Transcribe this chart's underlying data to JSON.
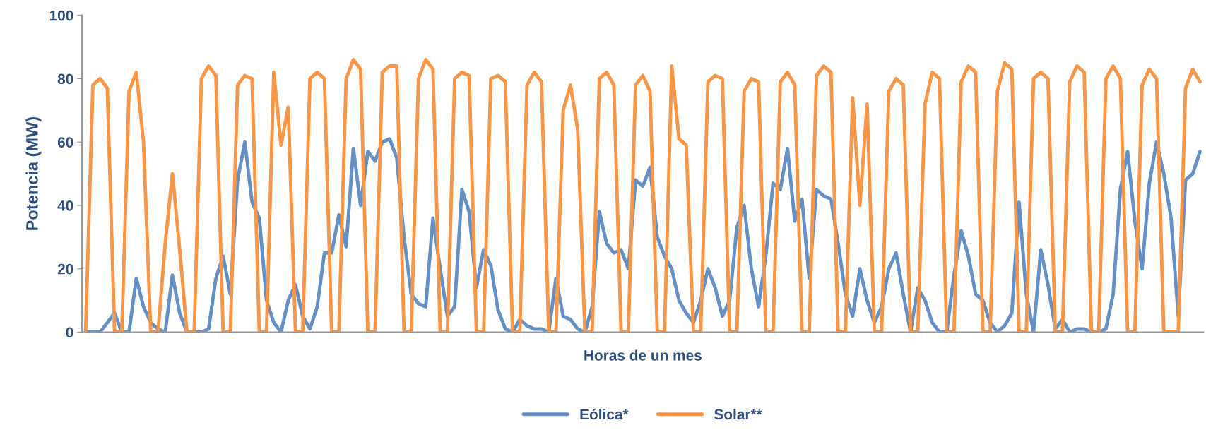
{
  "chart_data": {
    "type": "line",
    "xlabel": "Horas de un mes",
    "ylabel": "Potencia (MW)",
    "categories": [
      null,
      null,
      null,
      null,
      null,
      null,
      null,
      null,
      null,
      null,
      null,
      null,
      null,
      null,
      null,
      null,
      null,
      null,
      null,
      null,
      null,
      null,
      null,
      null,
      null,
      null,
      null,
      null,
      null,
      null,
      null,
      null,
      null,
      null,
      null,
      null,
      null,
      null,
      null,
      null,
      null,
      null,
      null,
      null,
      null,
      null,
      null,
      null,
      null,
      null,
      null,
      null,
      null,
      null,
      null,
      null,
      null,
      null,
      null,
      null,
      null,
      null,
      null,
      null,
      null,
      null,
      null,
      null,
      null,
      null,
      null,
      null,
      null,
      null,
      null,
      null,
      null,
      null,
      null,
      null,
      null,
      null,
      null,
      null,
      null,
      null,
      null,
      null,
      null,
      null,
      null,
      null,
      null,
      null,
      null,
      null,
      null,
      null,
      null,
      null,
      null,
      null,
      null,
      null,
      null,
      null,
      null,
      null,
      null,
      null,
      null,
      null,
      null,
      null,
      null,
      null,
      null,
      null,
      null,
      null,
      null,
      null,
      null,
      null,
      null,
      null,
      null,
      null,
      null,
      null,
      null,
      null,
      null,
      null,
      null,
      null,
      null,
      null,
      null,
      null,
      null,
      null,
      null,
      null,
      null,
      null,
      null,
      null,
      null,
      null,
      null,
      null,
      null,
      null,
      null
    ],
    "series": [
      {
        "name": "Eólica*",
        "color": "#6590c6",
        "values": [
          0,
          0,
          0,
          3,
          6,
          0,
          0,
          17,
          8,
          3,
          1,
          0,
          18,
          6,
          0,
          0,
          0,
          1,
          17,
          24,
          12,
          48,
          60,
          41,
          36,
          10,
          3,
          0,
          10,
          15,
          5,
          1,
          8,
          25,
          25,
          37,
          27,
          58,
          40,
          57,
          54,
          60,
          61,
          55,
          30,
          12,
          9,
          8,
          36,
          20,
          5,
          8,
          45,
          38,
          14,
          26,
          21,
          7,
          1,
          0,
          4,
          2,
          1,
          1,
          0,
          17,
          5,
          4,
          1,
          0,
          8,
          38,
          28,
          25,
          26,
          20,
          48,
          46,
          52,
          30,
          24,
          20,
          10,
          6,
          3,
          10,
          20,
          14,
          5,
          10,
          33,
          40,
          20,
          8,
          24,
          47,
          45,
          58,
          35,
          42,
          17,
          45,
          43,
          42,
          28,
          12,
          5,
          20,
          10,
          3,
          8,
          20,
          25,
          12,
          0,
          14,
          10,
          3,
          0,
          0,
          18,
          32,
          24,
          12,
          10,
          3,
          0,
          2,
          6,
          41,
          12,
          0,
          26,
          15,
          1,
          4,
          0,
          1,
          1,
          0,
          0,
          1,
          12,
          45,
          57,
          35,
          20,
          47,
          60,
          50,
          36,
          5,
          48,
          50,
          57
        ]
      },
      {
        "name": "Solar**",
        "color": "#f79646",
        "values": [
          0,
          78,
          80,
          77,
          0,
          0,
          76,
          82,
          60,
          0,
          0,
          28,
          50,
          26,
          0,
          0,
          80,
          84,
          81,
          0,
          0,
          78,
          81,
          80,
          0,
          0,
          82,
          59,
          71,
          0,
          0,
          80,
          82,
          80,
          0,
          0,
          80,
          86,
          83,
          0,
          0,
          82,
          84,
          84,
          0,
          0,
          80,
          86,
          83,
          0,
          0,
          80,
          82,
          81,
          0,
          0,
          80,
          81,
          79,
          0,
          0,
          78,
          82,
          79,
          0,
          0,
          70,
          78,
          64,
          0,
          0,
          80,
          82,
          78,
          0,
          0,
          78,
          81,
          76,
          0,
          0,
          84,
          61,
          59,
          0,
          0,
          79,
          81,
          80,
          0,
          0,
          76,
          80,
          79,
          0,
          0,
          79,
          82,
          78,
          0,
          0,
          81,
          84,
          82,
          0,
          0,
          74,
          40,
          72,
          0,
          0,
          76,
          80,
          78,
          0,
          0,
          72,
          82,
          80,
          0,
          0,
          79,
          84,
          82,
          0,
          0,
          76,
          85,
          83,
          0,
          0,
          80,
          82,
          80,
          0,
          0,
          79,
          84,
          82,
          0,
          0,
          80,
          84,
          80,
          0,
          0,
          78,
          83,
          80,
          0,
          0,
          0,
          77,
          83,
          79
        ]
      }
    ],
    "ylim": [
      0,
      100
    ],
    "yticks": [
      0,
      20,
      40,
      60,
      80,
      100
    ],
    "tick_labels": "y",
    "grid": false,
    "legend": "bottom",
    "marker": "none",
    "line_style": "solid"
  }
}
